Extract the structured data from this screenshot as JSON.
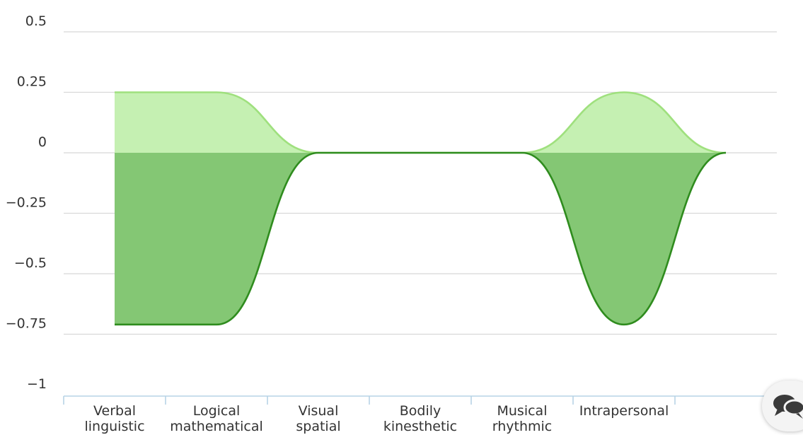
{
  "chart_data": {
    "type": "area",
    "categories": [
      [
        "Verbal",
        "linguistic"
      ],
      [
        "Logical",
        "mathematical"
      ],
      [
        "Visual",
        "spatial"
      ],
      [
        "Bodily",
        "kinesthetic"
      ],
      [
        "Musical",
        "rhythmic"
      ],
      [
        "Intrapersonal"
      ],
      [
        ""
      ]
    ],
    "series": [
      {
        "values": [
          0.25,
          0.25,
          0,
          0,
          0,
          0.25,
          0
        ],
        "color": "#9fe07e",
        "fill": "#c5f0b2"
      },
      {
        "values": [
          -0.71,
          -0.71,
          0,
          0,
          0,
          -0.71,
          0
        ],
        "color": "#2f8c1e",
        "fill": "#84c774"
      }
    ],
    "yticks": [
      "0.5",
      "0.25",
      "0",
      "−0.25",
      "−0.5",
      "−0.75",
      "−1"
    ],
    "ylim": [
      -1,
      0.5
    ],
    "grid": true,
    "legend": "none"
  },
  "icons": {
    "chat": "chat-bubbles-icon"
  }
}
